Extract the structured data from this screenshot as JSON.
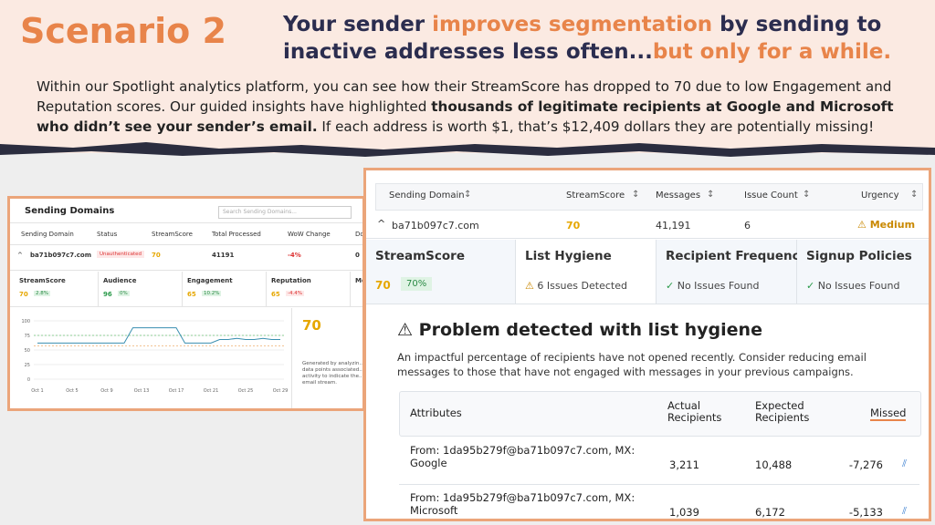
{
  "header": {
    "scenario": "Scenario 2",
    "headline": [
      {
        "text": "Your sender ",
        "accent": false
      },
      {
        "text": "improves segmentation",
        "accent": true
      },
      {
        "text": " by sending to inactive addresses less often...",
        "accent": false
      },
      {
        "text": "but only for a while.",
        "accent": true
      }
    ],
    "intro": [
      {
        "text": "Within our Spotlight analytics platform, you can see how their StreamScore has dropped to 70 due to low Engagement and Reputation scores. Our guided insights have highlighted ",
        "bold": false
      },
      {
        "text": "thousands of legitimate recipients at Google and Microsoft who didn’t see your sender’s email.",
        "bold": true
      },
      {
        "text": " If each address is worth $1, that’s $12,409 dollars they are potentially missing!",
        "bold": false
      }
    ]
  },
  "domains_panel": {
    "title": "Sending Domains",
    "search": "Search Sending Domains...",
    "columns": [
      "Sending Domain",
      "Status",
      "StreamScore",
      "Total Processed",
      "WoW Change",
      "Do"
    ],
    "row": [
      "ba71b097c7.com",
      "Unauthenticated",
      "70",
      "41191",
      "-4%",
      "0"
    ],
    "scores": [
      {
        "label": "StreamScore",
        "value": "70",
        "change": "2.8%"
      },
      {
        "label": "Audience",
        "value": "96",
        "change": "0%"
      },
      {
        "label": "Engagement",
        "value": "65",
        "change": "10.2%"
      },
      {
        "label": "Reputation",
        "value": "65",
        "change": "-4.4%"
      },
      {
        "label": "Me",
        "value": "",
        "change": ""
      }
    ],
    "chart": {
      "type": "line",
      "ylim": [
        0,
        100
      ],
      "yticks": [
        100,
        75,
        50,
        25,
        0
      ],
      "x_labels": [
        "Oct 1",
        "Oct 5",
        "Oct 9",
        "Oct 13",
        "Oct 17",
        "Oct 21",
        "Oct 25",
        "Oct 29"
      ],
      "values": [
        62,
        62,
        62,
        62,
        62,
        62,
        62,
        62,
        62,
        62,
        62,
        88,
        88,
        88,
        88,
        88,
        88,
        62,
        62,
        62,
        62,
        68,
        68,
        70,
        68,
        68,
        70,
        68,
        68
      ],
      "reference_lines": [
        75,
        57
      ],
      "side_value": "70",
      "side_text": "Generated by analyzin... data points associated... activity to indicate the... email stream."
    }
  },
  "detail_panel": {
    "columns": [
      "Sending Domain",
      "StreamScore",
      "Messages",
      "Issue Count",
      "Urgency"
    ],
    "row": [
      "ba71b097c7.com",
      "70",
      "41,191",
      "6",
      "Medium"
    ],
    "cards": [
      {
        "title": "StreamScore",
        "value": "70",
        "badge": "70%"
      },
      {
        "title": "List Hygiene",
        "status": "6 Issues Detected"
      },
      {
        "title": "Recipient Frequency",
        "status": "No Issues Found"
      },
      {
        "title": "Signup Policies",
        "status": "No Issues Found"
      }
    ],
    "problem_title": "Problem detected with list hygiene",
    "problem_text": "An impactful percentage of recipients have not opened recently. Consider reducing email messages to those that have not engaged with messages in your previous campaigns.",
    "table": {
      "columns": [
        "Attributes",
        "Actual Recipients",
        "Expected Recipients",
        "Missed"
      ],
      "rows": [
        [
          "From: 1da95b279f@ba71b097c7.com, MX: Google",
          "3,211",
          "10,488",
          "-7,276"
        ],
        [
          "From: 1da95b279f@ba71b097c7.com, MX: Microsoft",
          "1,039",
          "6,172",
          "-5,133"
        ]
      ]
    }
  }
}
